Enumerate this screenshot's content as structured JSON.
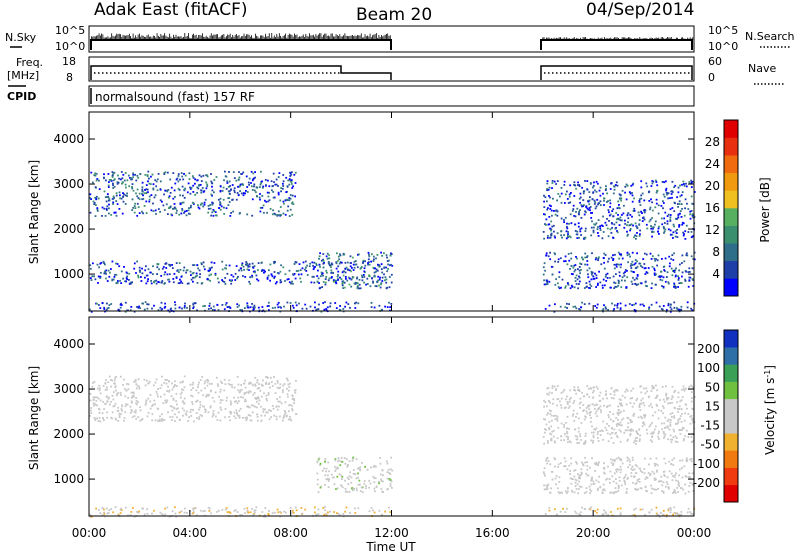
{
  "header": {
    "station": "Adak East (fitACF)",
    "beam": "Beam 20",
    "date": "04/Sep/2014"
  },
  "top_panels": {
    "nsky_label": "N.Sky",
    "nsky_ticks": [
      "10^5",
      "10^0"
    ],
    "nsearch_label": "N.Search",
    "nsearch_ticks": [
      "10^5",
      "10^0"
    ],
    "freq_label": "Freq.",
    "freq_unit": "[MHz]",
    "freq_ticks": [
      "18",
      "8"
    ],
    "nave_label": "Nave",
    "nave_ticks": [
      "60",
      "0"
    ],
    "cpid_label": "CPID",
    "cpid_text": "normalsound (fast) 157 RF"
  },
  "colors": {
    "power_scale": [
      "#0000ff",
      "#1f3fa8",
      "#2e6e8a",
      "#3a8f6e",
      "#56b060",
      "#f0c020",
      "#f09a10",
      "#f06a10",
      "#e83010",
      "#e00000"
    ],
    "velocity_scale": [
      "#e00000",
      "#f03a10",
      "#f07a10",
      "#f0b030",
      "#c8c8c8",
      "#c8c8c8",
      "#70c040",
      "#3aa055",
      "#2f6fa8",
      "#1030c0"
    ]
  },
  "chart_data": [
    {
      "type": "heatmap",
      "name": "power",
      "xlabel": "",
      "ylabel": "Slant Range [km]",
      "xlim": [
        0,
        24
      ],
      "ylim": [
        180,
        4600
      ],
      "yticks": [
        "1000",
        "2000",
        "3000",
        "4000"
      ],
      "colorbar": {
        "label": "Power [dB]",
        "tick_labels": [
          "4",
          "8",
          "12",
          "16",
          "20",
          "24",
          "28"
        ],
        "range": [
          0,
          32
        ]
      },
      "data_gaps_hours": [
        [
          12,
          18
        ]
      ],
      "scatter_regions": [
        {
          "t_start": 0.0,
          "t_end": 8.2,
          "range_km": [
            2300,
            3300
          ],
          "typical_value": 6
        },
        {
          "t_start": 0.0,
          "t_end": 12.0,
          "range_km": [
            800,
            1300
          ],
          "typical_value": 5
        },
        {
          "t_start": 9.0,
          "t_end": 12.0,
          "range_km": [
            700,
            1500
          ],
          "typical_value": 8
        },
        {
          "t_start": 18.0,
          "t_end": 24.0,
          "range_km": [
            1800,
            3100
          ],
          "typical_value": 5
        },
        {
          "t_start": 18.0,
          "t_end": 24.0,
          "range_km": [
            700,
            1500
          ],
          "typical_value": 5
        },
        {
          "t_start": 0.0,
          "t_end": 24.0,
          "range_km": [
            180,
            400
          ],
          "typical_value": 4
        }
      ]
    },
    {
      "type": "heatmap",
      "name": "velocity",
      "xlabel": "Time UT",
      "ylabel": "Slant Range [km]",
      "xlim": [
        0,
        24
      ],
      "ylim": [
        180,
        4600
      ],
      "xticks": [
        "00:00",
        "04:00",
        "08:00",
        "12:00",
        "16:00",
        "20:00",
        "00:00"
      ],
      "yticks": [
        "1000",
        "2000",
        "3000",
        "4000"
      ],
      "colorbar": {
        "label": "Velocity",
        "unit_base": "[m s",
        "unit_exp": "-1",
        "unit_close": "]",
        "tick_labels": [
          "200",
          "100",
          "50",
          "15",
          "-15",
          "-50",
          "-100",
          "-200"
        ],
        "range": [
          -250,
          250
        ]
      },
      "data_gaps_hours": [
        [
          12,
          18
        ]
      ],
      "scatter_regions": [
        {
          "t_start": 0.0,
          "t_end": 8.2,
          "range_km": [
            2300,
            3300
          ],
          "typical_value": 0
        },
        {
          "t_start": 9.0,
          "t_end": 12.0,
          "range_km": [
            700,
            1500
          ],
          "typical_value": 30
        },
        {
          "t_start": 18.0,
          "t_end": 24.0,
          "range_km": [
            1800,
            3100
          ],
          "typical_value": 0
        },
        {
          "t_start": 18.0,
          "t_end": 24.0,
          "range_km": [
            700,
            1500
          ],
          "typical_value": 0
        },
        {
          "t_start": 0.0,
          "t_end": 24.0,
          "range_km": [
            180,
            400
          ],
          "typical_value": -40
        }
      ]
    }
  ]
}
